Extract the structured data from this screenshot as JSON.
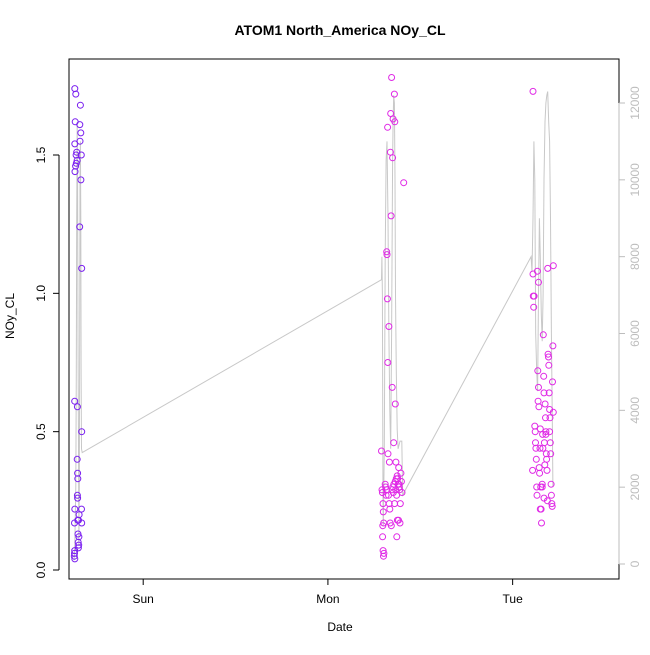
{
  "chart_data": {
    "type": "scatter",
    "title": "ATOM1 North_America NOy_CL",
    "xlabel": "Date",
    "ylabel": "NOy_CL",
    "x_ticks": [
      "Sun",
      "Mon",
      "Tue"
    ],
    "x_tick_positions_days": [
      0.25,
      1.25,
      2.25
    ],
    "xlim_days": [
      -0.13,
      2.75
    ],
    "ylim": [
      -0.02,
      1.85
    ],
    "y_ticks": [
      0.0,
      0.5,
      1.0,
      1.5
    ],
    "y_tick_labels": [
      "0.0",
      "0.5",
      "1.0",
      "1.5"
    ],
    "y2_ticks": [
      0,
      2000,
      4000,
      6000,
      8000,
      10000,
      12000
    ],
    "y2_tick_labels": [
      "0",
      "2000",
      "4000",
      "6000",
      "8000",
      "10000",
      "12000"
    ],
    "y2lim": [
      -300,
      13100
    ],
    "grid": false,
    "colors": {
      "points_early": "#7a1ff0",
      "points_late": "#e02ae6",
      "altitude_line": "#c8c8c8",
      "axis": "#000000",
      "axis_right": "#bdbdbd"
    },
    "points": [
      {
        "x": -0.12,
        "y": 1.74
      },
      {
        "x": -0.115,
        "y": 1.72
      },
      {
        "x": -0.118,
        "y": 1.62
      },
      {
        "x": -0.12,
        "y": 1.54
      },
      {
        "x": -0.11,
        "y": 1.51
      },
      {
        "x": -0.113,
        "y": 1.5
      },
      {
        "x": -0.108,
        "y": 1.48
      },
      {
        "x": -0.112,
        "y": 1.47
      },
      {
        "x": -0.116,
        "y": 1.46
      },
      {
        "x": -0.119,
        "y": 1.44
      },
      {
        "x": -0.09,
        "y": 1.68
      },
      {
        "x": -0.093,
        "y": 1.61
      },
      {
        "x": -0.088,
        "y": 1.58
      },
      {
        "x": -0.092,
        "y": 1.55
      },
      {
        "x": -0.085,
        "y": 1.5
      },
      {
        "x": -0.087,
        "y": 1.41
      },
      {
        "x": -0.094,
        "y": 1.24
      },
      {
        "x": -0.083,
        "y": 1.09
      },
      {
        "x": -0.121,
        "y": 0.61
      },
      {
        "x": -0.106,
        "y": 0.59
      },
      {
        "x": -0.083,
        "y": 0.5
      },
      {
        "x": -0.107,
        "y": 0.4
      },
      {
        "x": -0.105,
        "y": 0.35
      },
      {
        "x": -0.104,
        "y": 0.33
      },
      {
        "x": -0.106,
        "y": 0.27
      },
      {
        "x": -0.105,
        "y": 0.26
      },
      {
        "x": -0.12,
        "y": 0.22
      },
      {
        "x": -0.084,
        "y": 0.22
      },
      {
        "x": -0.097,
        "y": 0.2
      },
      {
        "x": -0.104,
        "y": 0.18
      },
      {
        "x": -0.1,
        "y": 0.18
      },
      {
        "x": -0.122,
        "y": 0.17
      },
      {
        "x": -0.083,
        "y": 0.17
      },
      {
        "x": -0.103,
        "y": 0.13
      },
      {
        "x": -0.098,
        "y": 0.12
      },
      {
        "x": -0.102,
        "y": 0.1
      },
      {
        "x": -0.099,
        "y": 0.09
      },
      {
        "x": -0.101,
        "y": 0.08
      },
      {
        "x": -0.121,
        "y": 0.07
      },
      {
        "x": -0.122,
        "y": 0.06
      },
      {
        "x": -0.123,
        "y": 0.05
      },
      {
        "x": -0.12,
        "y": 0.04
      },
      {
        "x": 1.54,
        "y": 0.43
      },
      {
        "x": 1.543,
        "y": 0.29
      },
      {
        "x": 1.545,
        "y": 0.28
      },
      {
        "x": 1.548,
        "y": 0.24
      },
      {
        "x": 1.55,
        "y": 0.21
      },
      {
        "x": 1.552,
        "y": 0.17
      },
      {
        "x": 1.547,
        "y": 0.16
      },
      {
        "x": 1.546,
        "y": 0.12
      },
      {
        "x": 1.549,
        "y": 0.07
      },
      {
        "x": 1.551,
        "y": 0.05
      },
      {
        "x": 1.553,
        "y": 0.06
      },
      {
        "x": 1.568,
        "y": 1.15
      },
      {
        "x": 1.57,
        "y": 1.14
      },
      {
        "x": 1.572,
        "y": 0.98
      },
      {
        "x": 1.574,
        "y": 0.75
      },
      {
        "x": 1.573,
        "y": 1.6
      },
      {
        "x": 1.575,
        "y": 0.42
      },
      {
        "x": 1.58,
        "y": 0.88
      },
      {
        "x": 1.583,
        "y": 0.39
      },
      {
        "x": 1.588,
        "y": 1.51
      },
      {
        "x": 1.59,
        "y": 1.65
      },
      {
        "x": 1.592,
        "y": 1.28
      },
      {
        "x": 1.595,
        "y": 1.78
      },
      {
        "x": 1.598,
        "y": 0.66
      },
      {
        "x": 1.6,
        "y": 1.49
      },
      {
        "x": 1.603,
        "y": 1.63
      },
      {
        "x": 1.606,
        "y": 0.46
      },
      {
        "x": 1.61,
        "y": 1.72
      },
      {
        "x": 1.612,
        "y": 1.62
      },
      {
        "x": 1.615,
        "y": 0.6
      },
      {
        "x": 1.618,
        "y": 0.39
      },
      {
        "x": 1.62,
        "y": 0.33
      },
      {
        "x": 1.623,
        "y": 0.12
      },
      {
        "x": 1.626,
        "y": 0.18
      },
      {
        "x": 1.63,
        "y": 0.31
      },
      {
        "x": 1.633,
        "y": 0.37
      },
      {
        "x": 1.636,
        "y": 0.3
      },
      {
        "x": 1.64,
        "y": 0.17
      },
      {
        "x": 1.66,
        "y": 1.4
      },
      {
        "x": 1.56,
        "y": 0.31
      },
      {
        "x": 1.562,
        "y": 0.3
      },
      {
        "x": 1.565,
        "y": 0.27
      },
      {
        "x": 1.567,
        "y": 0.29
      },
      {
        "x": 1.578,
        "y": 0.27
      },
      {
        "x": 1.582,
        "y": 0.24
      },
      {
        "x": 1.585,
        "y": 0.22
      },
      {
        "x": 1.587,
        "y": 0.17
      },
      {
        "x": 1.593,
        "y": 0.16
      },
      {
        "x": 1.597,
        "y": 0.29
      },
      {
        "x": 1.601,
        "y": 0.3
      },
      {
        "x": 1.604,
        "y": 0.28
      },
      {
        "x": 1.607,
        "y": 0.31
      },
      {
        "x": 1.611,
        "y": 0.24
      },
      {
        "x": 1.614,
        "y": 0.32
      },
      {
        "x": 1.617,
        "y": 0.29
      },
      {
        "x": 1.622,
        "y": 0.27
      },
      {
        "x": 1.625,
        "y": 0.34
      },
      {
        "x": 1.628,
        "y": 0.33
      },
      {
        "x": 1.632,
        "y": 0.18
      },
      {
        "x": 1.635,
        "y": 0.31
      },
      {
        "x": 1.638,
        "y": 0.29
      },
      {
        "x": 1.642,
        "y": 0.24
      },
      {
        "x": 1.645,
        "y": 0.35
      },
      {
        "x": 1.648,
        "y": 0.32
      },
      {
        "x": 1.651,
        "y": 0.28
      },
      {
        "x": 2.36,
        "y": 1.73
      },
      {
        "x": 2.36,
        "y": 1.07
      },
      {
        "x": 2.362,
        "y": 0.99
      },
      {
        "x": 2.364,
        "y": 0.95
      },
      {
        "x": 2.366,
        "y": 0.99
      },
      {
        "x": 2.37,
        "y": 0.52
      },
      {
        "x": 2.372,
        "y": 0.5
      },
      {
        "x": 2.374,
        "y": 0.46
      },
      {
        "x": 2.376,
        "y": 0.44
      },
      {
        "x": 2.378,
        "y": 0.4
      },
      {
        "x": 2.38,
        "y": 0.3
      },
      {
        "x": 2.382,
        "y": 0.27
      },
      {
        "x": 2.358,
        "y": 0.36
      },
      {
        "x": 2.384,
        "y": 1.08
      },
      {
        "x": 2.386,
        "y": 0.72
      },
      {
        "x": 2.388,
        "y": 0.61
      },
      {
        "x": 2.39,
        "y": 1.04
      },
      {
        "x": 2.392,
        "y": 0.59
      },
      {
        "x": 2.394,
        "y": 0.37
      },
      {
        "x": 2.396,
        "y": 0.35
      },
      {
        "x": 2.398,
        "y": 0.44
      },
      {
        "x": 2.4,
        "y": 0.51
      },
      {
        "x": 2.402,
        "y": 0.3
      },
      {
        "x": 2.404,
        "y": 0.22
      },
      {
        "x": 2.406,
        "y": 0.17
      },
      {
        "x": 2.41,
        "y": 0.31
      },
      {
        "x": 2.412,
        "y": 0.49
      },
      {
        "x": 2.414,
        "y": 0.44
      },
      {
        "x": 2.416,
        "y": 0.85
      },
      {
        "x": 2.418,
        "y": 0.7
      },
      {
        "x": 2.42,
        "y": 0.64
      },
      {
        "x": 2.422,
        "y": 0.46
      },
      {
        "x": 2.424,
        "y": 0.38
      },
      {
        "x": 2.426,
        "y": 0.6
      },
      {
        "x": 2.428,
        "y": 0.55
      },
      {
        "x": 2.43,
        "y": 0.5
      },
      {
        "x": 2.432,
        "y": 0.42
      },
      {
        "x": 2.434,
        "y": 0.4
      },
      {
        "x": 2.436,
        "y": 0.36
      },
      {
        "x": 2.438,
        "y": 0.25
      },
      {
        "x": 2.44,
        "y": 1.09
      },
      {
        "x": 2.442,
        "y": 0.78
      },
      {
        "x": 2.444,
        "y": 0.77
      },
      {
        "x": 2.446,
        "y": 0.74
      },
      {
        "x": 2.448,
        "y": 0.64
      },
      {
        "x": 2.45,
        "y": 0.58
      },
      {
        "x": 2.452,
        "y": 0.55
      },
      {
        "x": 2.454,
        "y": 0.46
      },
      {
        "x": 2.456,
        "y": 0.42
      },
      {
        "x": 2.458,
        "y": 0.31
      },
      {
        "x": 2.46,
        "y": 0.27
      },
      {
        "x": 2.462,
        "y": 0.24
      },
      {
        "x": 2.464,
        "y": 0.23
      },
      {
        "x": 2.466,
        "y": 0.68
      },
      {
        "x": 2.468,
        "y": 0.81
      },
      {
        "x": 2.47,
        "y": 1.1
      },
      {
        "x": 2.4,
        "y": 0.22
      },
      {
        "x": 2.42,
        "y": 0.26
      },
      {
        "x": 2.41,
        "y": 0.3
      },
      {
        "x": 2.39,
        "y": 0.66
      },
      {
        "x": 2.43,
        "y": 0.49
      },
      {
        "x": 2.45,
        "y": 0.5
      },
      {
        "x": 2.47,
        "y": 0.57
      }
    ],
    "altitude_line": [
      [
        -0.124,
        100
      ],
      [
        -0.12,
        500
      ],
      [
        -0.115,
        2000
      ],
      [
        -0.112,
        5000
      ],
      [
        -0.11,
        9000
      ],
      [
        -0.107,
        11500
      ],
      [
        -0.105,
        10000
      ],
      [
        -0.103,
        6000
      ],
      [
        -0.1,
        3000
      ],
      [
        -0.098,
        500
      ],
      [
        -0.096,
        2000
      ],
      [
        -0.094,
        6000
      ],
      [
        -0.092,
        10000
      ],
      [
        -0.09,
        11000
      ],
      [
        -0.088,
        9000
      ],
      [
        -0.086,
        5000
      ],
      [
        -0.084,
        3000
      ],
      [
        -0.08,
        2900
      ],
      [
        1.54,
        7400
      ],
      [
        1.542,
        8000
      ],
      [
        1.545,
        7000
      ],
      [
        1.548,
        1500
      ],
      [
        1.55,
        1000
      ],
      [
        1.555,
        3000
      ],
      [
        1.56,
        8000
      ],
      [
        1.565,
        10500
      ],
      [
        1.57,
        11000
      ],
      [
        1.575,
        9000
      ],
      [
        1.58,
        6000
      ],
      [
        1.585,
        4000
      ],
      [
        1.59,
        3000
      ],
      [
        1.595,
        6000
      ],
      [
        1.6,
        10500
      ],
      [
        1.603,
        11500
      ],
      [
        1.606,
        12200
      ],
      [
        1.61,
        12000
      ],
      [
        1.613,
        10000
      ],
      [
        1.616,
        7000
      ],
      [
        1.62,
        5000
      ],
      [
        1.625,
        3500
      ],
      [
        1.63,
        3000
      ],
      [
        1.64,
        3200
      ],
      [
        1.65,
        3200
      ],
      [
        1.655,
        1800
      ],
      [
        2.35,
        8000
      ],
      [
        2.355,
        7600
      ],
      [
        2.36,
        9000
      ],
      [
        2.365,
        11000
      ],
      [
        2.37,
        10000
      ],
      [
        2.375,
        6000
      ],
      [
        2.38,
        5000
      ],
      [
        2.385,
        4500
      ],
      [
        2.39,
        7000
      ],
      [
        2.395,
        9000
      ],
      [
        2.4,
        8000
      ],
      [
        2.405,
        6500
      ],
      [
        2.41,
        5800
      ],
      [
        2.415,
        7000
      ],
      [
        2.42,
        10000
      ],
      [
        2.425,
        11500
      ],
      [
        2.43,
        12000
      ],
      [
        2.435,
        12200
      ],
      [
        2.44,
        12300
      ],
      [
        2.445,
        11500
      ],
      [
        2.45,
        11000
      ],
      [
        2.455,
        9000
      ],
      [
        2.46,
        6000
      ],
      [
        2.465,
        3500
      ],
      [
        2.468,
        2000
      ]
    ]
  }
}
